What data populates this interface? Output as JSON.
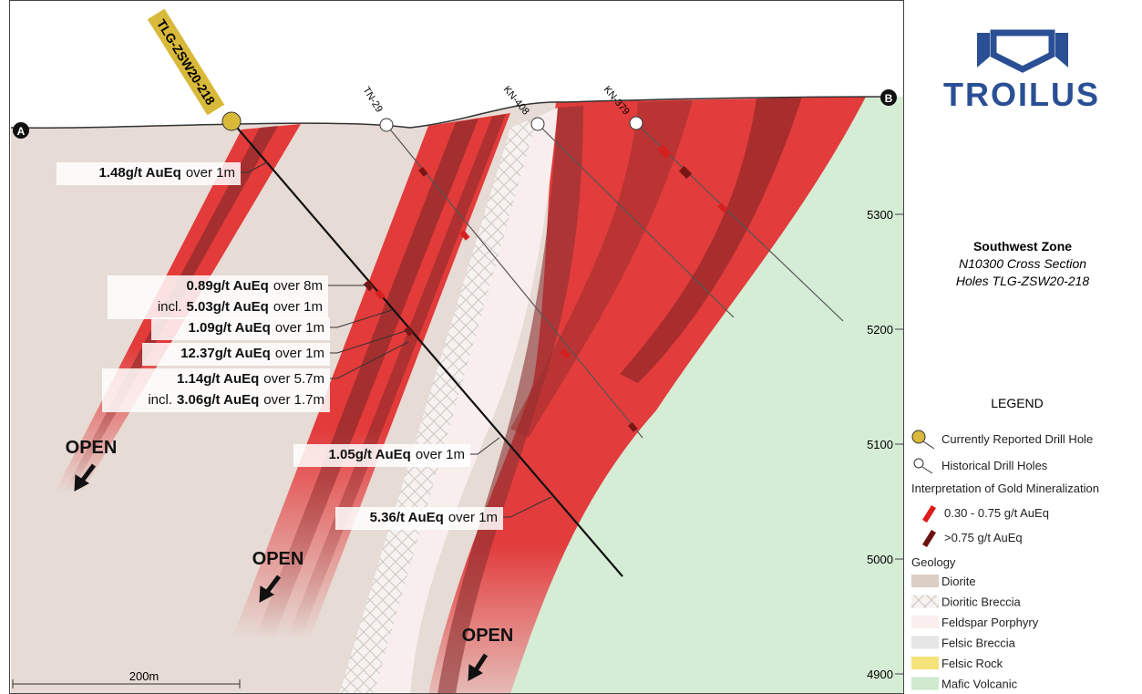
{
  "section": {
    "start": "A",
    "end": "B",
    "scale": "200m"
  },
  "holes": {
    "current": "TLG-ZSW20-218",
    "historical": [
      "TN-29",
      "KN-408",
      "KN-379"
    ]
  },
  "elevations": [
    "5300",
    "5200",
    "5100",
    "5000",
    "4900"
  ],
  "intercepts": [
    {
      "lines": [
        {
          "bold": "1.48g/t AuEq",
          "after": "over 1m"
        }
      ]
    },
    {
      "lines": [
        {
          "bold": "0.89g/t AuEq",
          "after": "over 8m"
        },
        {
          "before": "incl.",
          "bold": "5.03g/t AuEq",
          "after": "over 1m"
        }
      ]
    },
    {
      "lines": [
        {
          "bold": "1.09g/t AuEq",
          "after": "over 1m"
        }
      ]
    },
    {
      "lines": [
        {
          "bold": "12.37g/t AuEq",
          "after": "over 1m"
        }
      ]
    },
    {
      "lines": [
        {
          "bold": "1.14g/t AuEq",
          "after": "over 5.7m"
        },
        {
          "before": "incl.",
          "bold": "3.06g/t AuEq",
          "after": "over 1.7m"
        }
      ]
    },
    {
      "lines": [
        {
          "bold": "1.05g/t AuEq",
          "after": "over 1m"
        }
      ]
    },
    {
      "lines": [
        {
          "bold": "5.36/t AuEq",
          "after": "over 1m"
        }
      ]
    }
  ],
  "open": [
    "OPEN",
    "OPEN",
    "OPEN"
  ],
  "logo": "TROILUS",
  "info": {
    "title": "Southwest Zone",
    "line1": "N10300 Cross Section",
    "line2": "Holes TLG-ZSW20-218"
  },
  "legend": {
    "title": "LEGEND",
    "current": "Currently Reported Drill Hole",
    "historical": "Historical Drill Holes",
    "mineral_title": "Interpretation of Gold Mineralization",
    "low": "0.30 - 0.75 g/t AuEq",
    "high": ">0.75 g/t AuEq",
    "geology_title": "Geology",
    "geology": [
      "Diorite",
      "Dioritic Breccia",
      "Feldspar Porphyry",
      "Felsic Breccia",
      "Felsic Rock",
      "Mafic Volcanic"
    ]
  }
}
